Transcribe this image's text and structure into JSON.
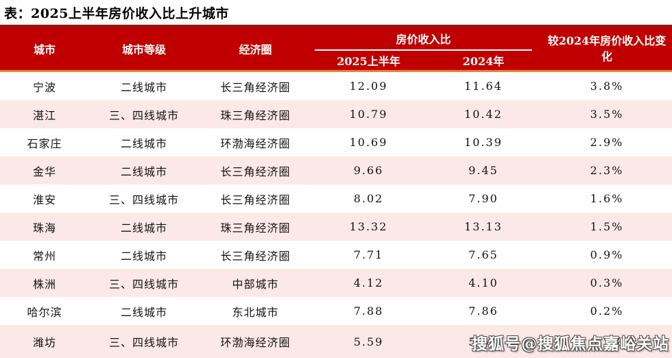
{
  "title": "表：2025上半年房价收入比上升城市",
  "colors": {
    "header_bg": "#C00000",
    "header_top_line": "#8B1A10",
    "header_bottom_line": "#ED7D31",
    "alt_row_bg": "#FCE9E7",
    "header_text": "#FFFFFF"
  },
  "table": {
    "headers": {
      "city": "城市",
      "tier": "城市等级",
      "circle": "经济圈",
      "ratio_group": "房价收入比",
      "h1_2025": "2025上半年",
      "y2024": "2024年",
      "change": "较2024年房价收入比变化"
    },
    "rows": [
      {
        "city": "宁波",
        "tier": "二线城市",
        "circle": "长三角经济圈",
        "v2025": "12.09",
        "v2024": "11.64",
        "change": "3.8%"
      },
      {
        "city": "湛江",
        "tier": "三、四线城市",
        "circle": "珠三角经济圈",
        "v2025": "10.79",
        "v2024": "10.42",
        "change": "3.5%"
      },
      {
        "city": "石家庄",
        "tier": "二线城市",
        "circle": "环渤海经济圈",
        "v2025": "10.69",
        "v2024": "10.39",
        "change": "2.9%"
      },
      {
        "city": "金华",
        "tier": "二线城市",
        "circle": "长三角经济圈",
        "v2025": "9.66",
        "v2024": "9.45",
        "change": "2.3%"
      },
      {
        "city": "淮安",
        "tier": "三、四线城市",
        "circle": "长三角经济圈",
        "v2025": "8.02",
        "v2024": "7.90",
        "change": "1.6%"
      },
      {
        "city": "珠海",
        "tier": "二线城市",
        "circle": "珠三角经济圈",
        "v2025": "13.32",
        "v2024": "13.13",
        "change": "1.5%"
      },
      {
        "city": "常州",
        "tier": "二线城市",
        "circle": "长三角经济圈",
        "v2025": "7.71",
        "v2024": "7.65",
        "change": "0.9%"
      },
      {
        "city": "株洲",
        "tier": "三、四线城市",
        "circle": "中部城市",
        "v2025": "4.12",
        "v2024": "4.10",
        "change": "0.3%"
      },
      {
        "city": "哈尔滨",
        "tier": "二线城市",
        "circle": "东北城市",
        "v2025": "7.88",
        "v2024": "7.86",
        "change": "0.2%"
      },
      {
        "city": "潍坊",
        "tier": "三、四线城市",
        "circle": "环渤海经济圈",
        "v2025": "5.59",
        "v2024": "5.58",
        "change": "0.2%"
      }
    ]
  },
  "watermark": "搜狐号@搜狐焦点嘉峪关站",
  "chart_data": {
    "type": "table",
    "title": "表：2025上半年房价收入比上升城市",
    "columns": [
      "城市",
      "城市等级",
      "经济圈",
      "房价收入比 2025上半年",
      "房价收入比 2024年",
      "较2024年房价收入比变化"
    ],
    "rows": [
      [
        "宁波",
        "二线城市",
        "长三角经济圈",
        12.09,
        11.64,
        "3.8%"
      ],
      [
        "湛江",
        "三、四线城市",
        "珠三角经济圈",
        10.79,
        10.42,
        "3.5%"
      ],
      [
        "石家庄",
        "二线城市",
        "环渤海经济圈",
        10.69,
        10.39,
        "2.9%"
      ],
      [
        "金华",
        "二线城市",
        "长三角经济圈",
        9.66,
        9.45,
        "2.3%"
      ],
      [
        "淮安",
        "三、四线城市",
        "长三角经济圈",
        8.02,
        7.9,
        "1.6%"
      ],
      [
        "珠海",
        "二线城市",
        "珠三角经济圈",
        13.32,
        13.13,
        "1.5%"
      ],
      [
        "常州",
        "二线城市",
        "长三角经济圈",
        7.71,
        7.65,
        "0.9%"
      ],
      [
        "株洲",
        "三、四线城市",
        "中部城市",
        4.12,
        4.1,
        "0.3%"
      ],
      [
        "哈尔滨",
        "二线城市",
        "东北城市",
        7.88,
        7.86,
        "0.2%"
      ],
      [
        "潍坊",
        "三、四线城市",
        "环渤海经济圈",
        5.59,
        5.58,
        "0.2%"
      ]
    ]
  }
}
